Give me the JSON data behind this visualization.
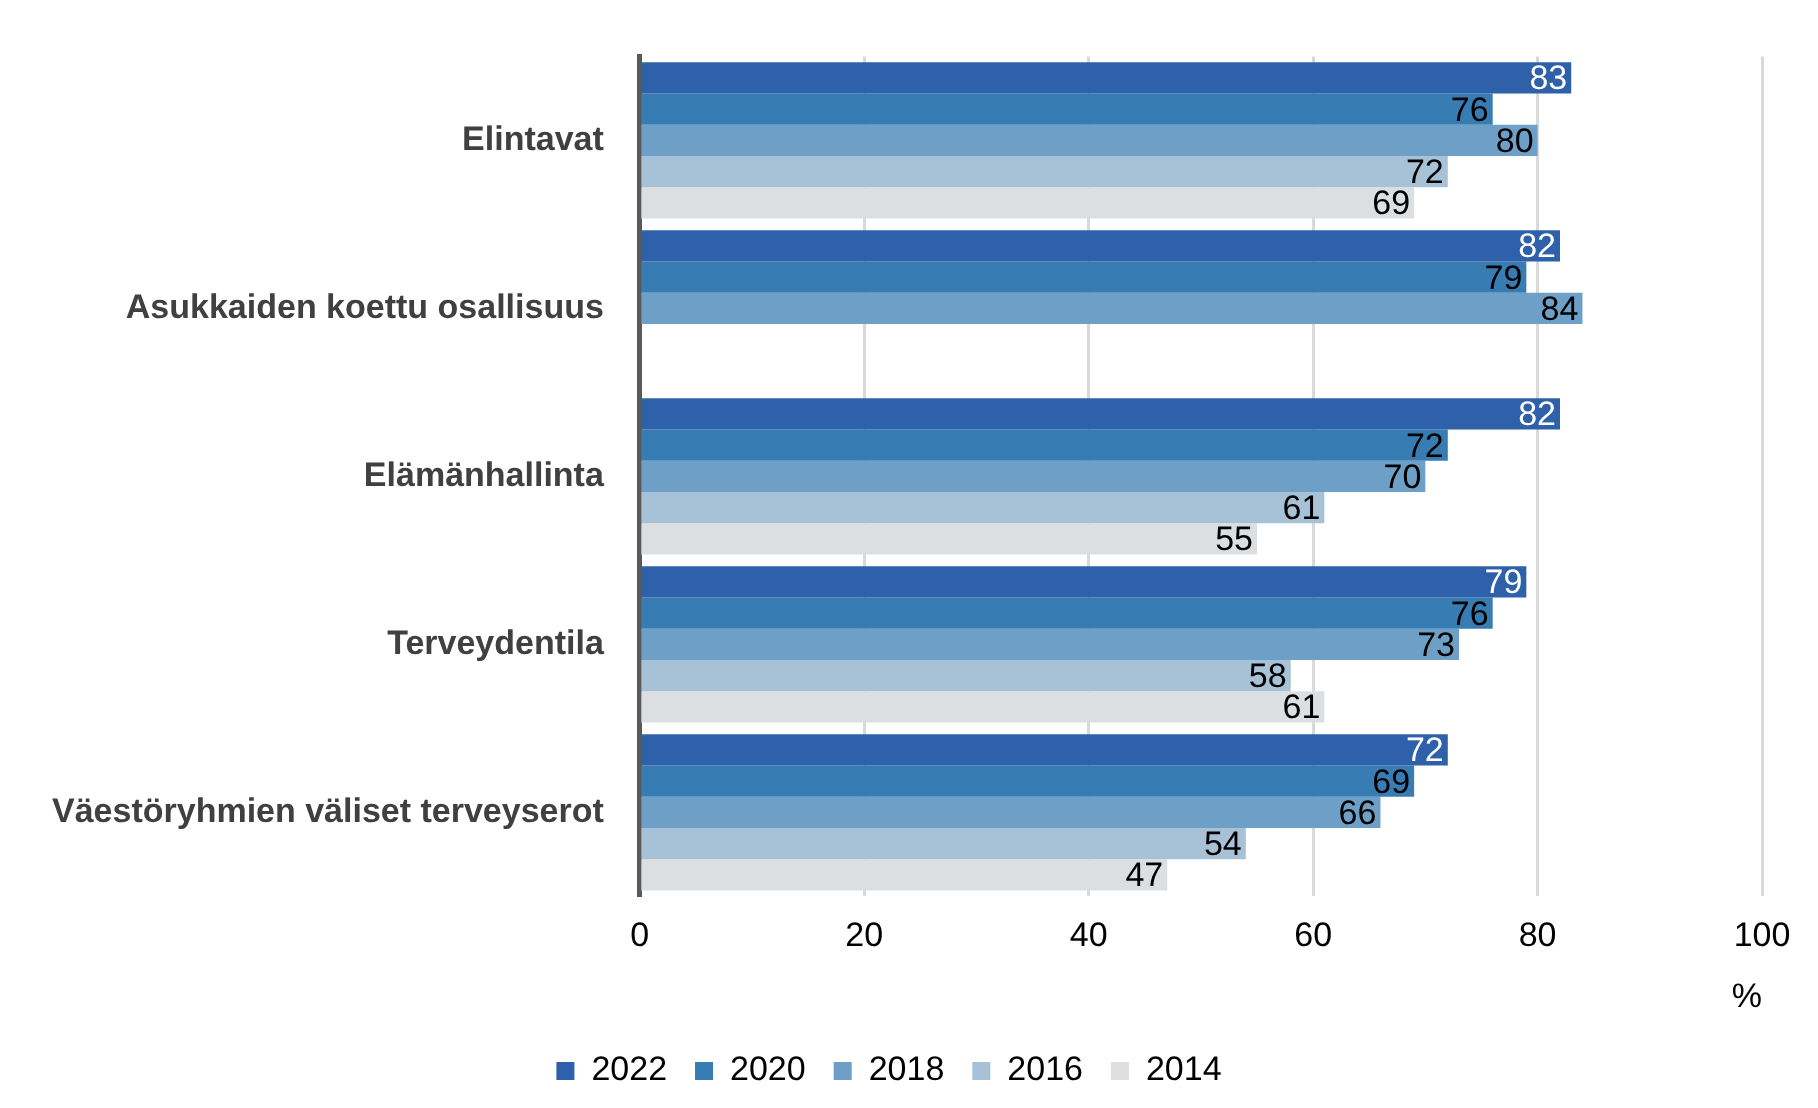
{
  "chart_data": {
    "type": "bar",
    "orientation": "horizontal",
    "xlabel": "%",
    "categories": [
      "Elintavat",
      "Asukkaiden koettu osallisuus",
      "Elämänhallinta",
      "Terveydentila",
      "Väestöryhmien väliset terveyserot"
    ],
    "series": [
      {
        "name": "2022",
        "color": "#2f60aa",
        "values": [
          83,
          82,
          82,
          79,
          72
        ]
      },
      {
        "name": "2020",
        "color": "#377db4",
        "values": [
          76,
          79,
          72,
          76,
          69
        ]
      },
      {
        "name": "2018",
        "color": "#6d9fc7",
        "values": [
          80,
          84,
          70,
          73,
          66
        ]
      },
      {
        "name": "2016",
        "color": "#a7c1d6",
        "values": [
          72,
          null,
          61,
          58,
          54
        ]
      },
      {
        "name": "2014",
        "color": "#dcdfe2",
        "values": [
          69,
          null,
          55,
          61,
          47
        ]
      }
    ],
    "xlim": [
      0,
      100
    ],
    "xticks": [
      0,
      20,
      40,
      60,
      80,
      100
    ],
    "grid": "x",
    "legend": "bottom",
    "data_labels": true
  }
}
